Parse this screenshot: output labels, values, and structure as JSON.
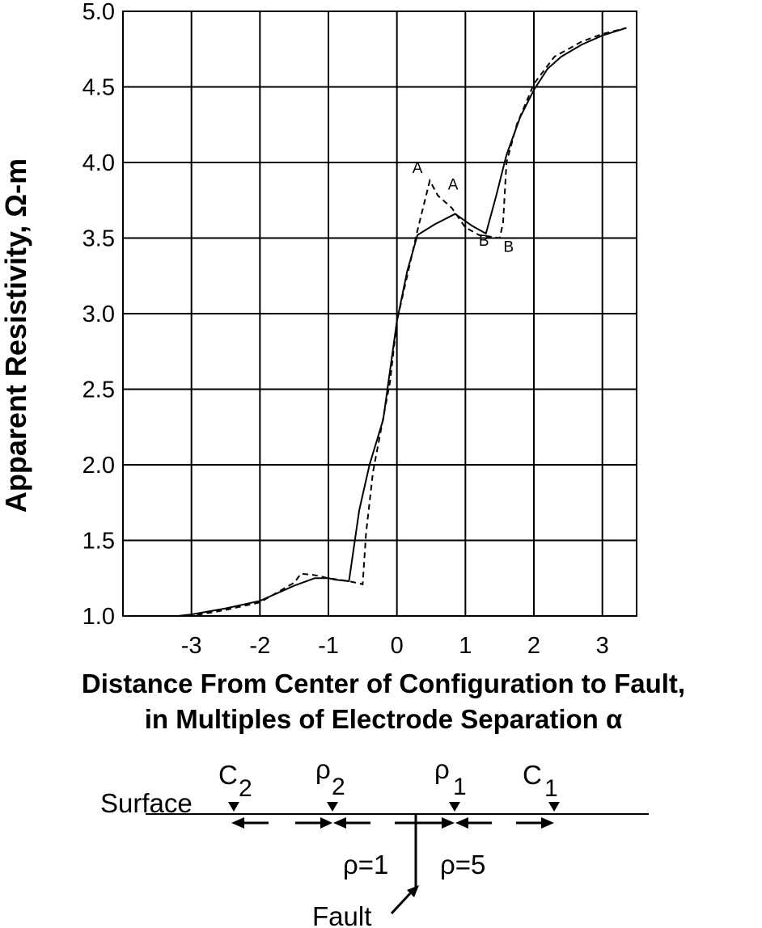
{
  "chart_data": {
    "type": "line",
    "ylabel": "Apparent Resistivity, Ω-m",
    "xlabel_line1": "Distance From Center of Configuration to Fault,",
    "xlabel_line2": "in Multiples of Electrode Separation α",
    "xlim": [
      -4,
      3.5
    ],
    "ylim": [
      1.0,
      5.0
    ],
    "x_ticks": [
      -3,
      -2,
      -1,
      0,
      1,
      2,
      3
    ],
    "x_tick_labels": [
      "-3",
      "-2",
      "-1",
      "0",
      "1",
      "2",
      "3"
    ],
    "y_ticks": [
      1.0,
      1.5,
      2.0,
      2.5,
      3.0,
      3.5,
      4.0,
      4.5,
      5.0
    ],
    "y_tick_labels": [
      "1.0",
      "1.5",
      "2.0",
      "2.5",
      "3.0",
      "3.5",
      "4.0",
      "4.5",
      "5.0"
    ],
    "grid": true,
    "series": [
      {
        "style": "solid",
        "x": [
          -3.2,
          -3.0,
          -2.5,
          -2.0,
          -1.5,
          -1.2,
          -1.0,
          -0.9,
          -0.7,
          -0.55,
          -0.4,
          -0.2,
          0.0,
          0.15,
          0.3,
          0.55,
          0.85,
          1.1,
          1.3,
          1.45,
          1.6,
          1.8,
          2.0,
          2.2,
          2.4,
          2.7,
          3.0,
          3.35
        ],
        "y": [
          1.0,
          1.01,
          1.05,
          1.1,
          1.2,
          1.25,
          1.25,
          1.24,
          1.23,
          1.7,
          2.0,
          2.3,
          2.95,
          3.28,
          3.52,
          3.59,
          3.66,
          3.58,
          3.53,
          3.78,
          4.05,
          4.3,
          4.48,
          4.62,
          4.7,
          4.78,
          4.84,
          4.89
        ]
      },
      {
        "style": "dashed",
        "x": [
          -3.2,
          -3.0,
          -2.5,
          -2.0,
          -1.5,
          -1.4,
          -1.2,
          -1.0,
          -0.7,
          -0.5,
          -0.45,
          -0.35,
          -0.1,
          0.0,
          0.2,
          0.3,
          0.48,
          0.6,
          0.8,
          1.0,
          1.2,
          1.5,
          1.55,
          1.6,
          1.75,
          2.0,
          2.3,
          2.7,
          3.0,
          3.35
        ],
        "y": [
          1.0,
          1.0,
          1.04,
          1.09,
          1.22,
          1.28,
          1.27,
          1.25,
          1.23,
          1.21,
          1.55,
          1.95,
          2.55,
          2.95,
          3.35,
          3.55,
          3.88,
          3.78,
          3.7,
          3.57,
          3.52,
          3.5,
          3.6,
          4.0,
          4.25,
          4.52,
          4.7,
          4.8,
          4.85,
          4.89
        ]
      }
    ],
    "annotations": [
      {
        "text": "A",
        "x": 0.3,
        "y": 3.93
      },
      {
        "text": "A",
        "x": 0.82,
        "y": 3.82
      },
      {
        "text": "B",
        "x": 1.27,
        "y": 3.45
      },
      {
        "text": "B",
        "x": 1.63,
        "y": 3.41
      }
    ]
  },
  "diagram": {
    "surface_label": "Surface",
    "c2_label": "C",
    "c2_sub": "2",
    "rho2_label": "ρ",
    "rho2_sub": "2",
    "rho1_label": "ρ",
    "rho1_sub": "1",
    "c1_label": "C",
    "c1_sub": "1",
    "left_resistivity": "ρ=1",
    "right_resistivity": "ρ=5",
    "fault_label": "Fault"
  }
}
